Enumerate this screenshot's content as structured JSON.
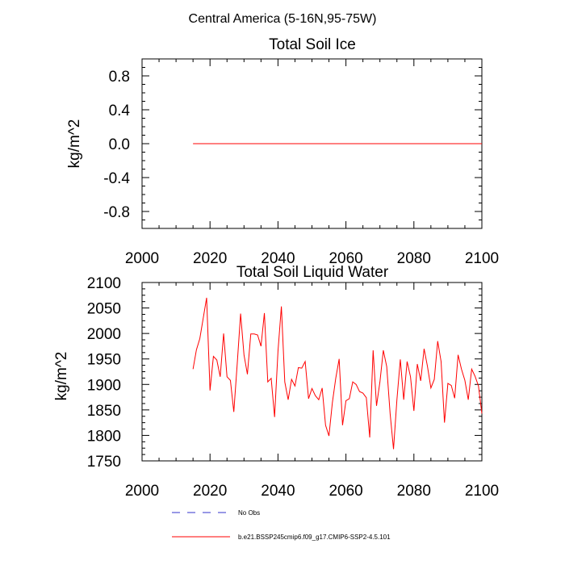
{
  "supertitle": "Central America (5-16N,95-75W)",
  "legend": {
    "obs_label": "No Obs",
    "obs_color": "#3333cc",
    "model_label": "b.e21.BSSP245cmip6.f09_g17.CMIP6-SSP2-4.5.101",
    "model_color": "#ff0000"
  },
  "chart_data": [
    {
      "type": "line",
      "title": "Total Soil Ice",
      "xlabel": "",
      "ylabel": "kg/m^2",
      "xlim": [
        2000,
        2100
      ],
      "ylim": [
        -1.0,
        1.0
      ],
      "xticks": [
        2000,
        2020,
        2040,
        2060,
        2080,
        2100
      ],
      "xtick_labels": [
        "2000",
        "2020",
        "2040",
        "2060",
        "2080",
        "2100"
      ],
      "yticks": [
        -0.8,
        -0.4,
        0.0,
        0.4,
        0.8
      ],
      "ytick_labels": [
        "-0.8",
        "-0.4",
        "0.0",
        "0.4",
        "0.8"
      ],
      "series": [
        {
          "name": "b.e21.BSSP245cmip6.f09_g17.CMIP6-SSP2-4.5.101",
          "color": "#ff0000",
          "x": [
            2015,
            2100
          ],
          "values": [
            0.0,
            0.0
          ]
        }
      ]
    },
    {
      "type": "line",
      "title": "Total Soil Liquid Water",
      "xlabel": "",
      "ylabel": "kg/m^2",
      "xlim": [
        2000,
        2100
      ],
      "ylim": [
        1750,
        2100
      ],
      "xticks": [
        2000,
        2020,
        2040,
        2060,
        2080,
        2100
      ],
      "xtick_labels": [
        "2000",
        "2020",
        "2040",
        "2060",
        "2080",
        "2100"
      ],
      "yticks": [
        1750,
        1800,
        1850,
        1900,
        1950,
        2000,
        2050,
        2100
      ],
      "ytick_labels": [
        "1750",
        "1800",
        "1850",
        "1900",
        "1950",
        "2000",
        "2050",
        "2100"
      ],
      "series": [
        {
          "name": "b.e21.BSSP245cmip6.f09_g17.CMIP6-SSP2-4.5.101",
          "color": "#ff0000",
          "x_start": 2015,
          "x_step": 1,
          "values": [
            1930,
            1968,
            1990,
            2030,
            2070,
            1888,
            1955,
            1948,
            1915,
            2000,
            1915,
            1908,
            1846,
            1940,
            2039,
            1958,
            1920,
            1999,
            1999,
            1997,
            1975,
            2040,
            1905,
            1912,
            1836,
            1965,
            2053,
            1905,
            1870,
            1910,
            1897,
            1933,
            1932,
            1945,
            1872,
            1892,
            1878,
            1870,
            1893,
            1820,
            1799,
            1864,
            1912,
            1950,
            1820,
            1868,
            1872,
            1905,
            1900,
            1886,
            1883,
            1874,
            1796,
            1967,
            1858,
            1905,
            1967,
            1935,
            1843,
            1773,
            1870,
            1949,
            1870,
            1945,
            1915,
            1848,
            1940,
            1907,
            1970,
            1935,
            1893,
            1910,
            1985,
            1945,
            1825,
            1902,
            1898,
            1873,
            1958,
            1930,
            1908,
            1870,
            1930,
            1916,
            1897,
            1843
          ]
        }
      ]
    }
  ]
}
